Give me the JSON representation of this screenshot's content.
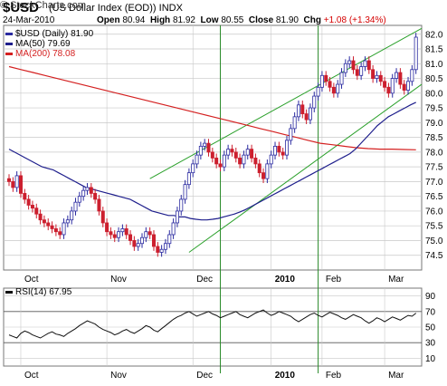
{
  "header": {
    "symbol": "$USD",
    "description": "(US Dollar Index (EOD))",
    "exchange": "INDX",
    "brand": "© StockCharts.com",
    "date": "24-Mar-2010",
    "open_label": "Open",
    "open": "80.94",
    "high_label": "High",
    "high": "81.92",
    "low_label": "Low",
    "low": "80.55",
    "close_label": "Close",
    "close": "81.90",
    "chg_label": "Chg",
    "chg": "+1.08 (+1.34%)"
  },
  "legend": {
    "price": "$USD (Daily) 81.90",
    "ma50": "MA(50) 79.69",
    "ma200": "MA(200) 78.08",
    "rsi": "RSI(14) 67.95"
  },
  "colors": {
    "up": "#2a2aa0",
    "down": "#cc1f2e",
    "ma50": "#1e1e8c",
    "ma200": "#d42020",
    "channel": "#2aa02a",
    "rsi": "#111111",
    "grid": "#c8c8c8",
    "vline": "#2a8a2a",
    "change": "#d40000"
  },
  "chart_data": [
    {
      "type": "candlestick",
      "title": "$USD (Daily)",
      "x_tick_labels": [
        "Oct",
        "Nov",
        "Dec",
        "2010",
        "Feb",
        "Mar"
      ],
      "y_tick_labels": [
        "74.5",
        "75.0",
        "75.5",
        "76.0",
        "76.5",
        "77.0",
        "77.5",
        "78.0",
        "78.5",
        "79.0",
        "79.5",
        "80.0",
        "80.5",
        "81.0",
        "81.5",
        "82.0"
      ],
      "ylim": [
        74.0,
        82.3
      ],
      "grid": true,
      "legend_position": "top-left",
      "close": [
        77.0,
        76.8,
        77.2,
        76.6,
        76.4,
        76.2,
        76.1,
        75.9,
        75.7,
        75.6,
        75.5,
        75.4,
        75.3,
        75.2,
        75.6,
        75.7,
        76.0,
        76.3,
        76.5,
        76.7,
        76.8,
        76.6,
        76.4,
        76.0,
        75.6,
        75.3,
        75.2,
        75.1,
        75.3,
        75.4,
        75.2,
        75.0,
        74.8,
        74.9,
        75.1,
        75.3,
        75.2,
        74.8,
        74.6,
        74.7,
        74.9,
        75.2,
        75.6,
        76.0,
        76.4,
        76.9,
        77.3,
        77.6,
        77.9,
        78.2,
        78.3,
        78.0,
        77.8,
        77.6,
        77.5,
        77.9,
        78.1,
        78.0,
        77.8,
        77.6,
        77.9,
        78.1,
        77.8,
        77.6,
        77.3,
        77.1,
        77.6,
        77.9,
        78.2,
        78.0,
        77.9,
        78.4,
        78.8,
        79.2,
        79.6,
        79.3,
        79.1,
        79.5,
        79.9,
        80.2,
        80.6,
        80.4,
        80.2,
        80.0,
        80.3,
        80.7,
        81.0,
        81.1,
        80.8,
        80.6,
        80.9,
        81.1,
        80.8,
        80.5,
        80.6,
        80.4,
        80.2,
        80.0,
        80.5,
        80.7,
        80.3,
        80.1,
        80.4,
        80.8,
        81.9
      ],
      "series": [
        {
          "name": "MA(50)",
          "values": [
            78.1,
            78.0,
            77.9,
            77.8,
            77.7,
            77.6,
            77.5,
            77.45,
            77.4,
            77.3,
            77.2,
            77.1,
            77.0,
            76.9,
            76.8,
            76.75,
            76.7,
            76.65,
            76.6,
            76.55,
            76.5,
            76.45,
            76.4,
            76.3,
            76.2,
            76.1,
            76.0,
            75.95,
            75.9,
            75.85,
            75.85,
            75.8,
            75.8,
            75.75,
            75.72,
            75.7,
            75.7,
            75.72,
            75.75,
            75.8,
            75.85,
            75.9,
            75.97,
            76.05,
            76.15,
            76.25,
            76.35,
            76.45,
            76.55,
            76.65,
            76.75,
            76.85,
            76.95,
            77.05,
            77.15,
            77.25,
            77.35,
            77.45,
            77.55,
            77.65,
            77.75,
            77.85,
            77.95,
            78.1,
            78.3,
            78.5,
            78.7,
            78.9,
            79.05,
            79.2,
            79.3,
            79.4,
            79.5,
            79.6,
            79.69
          ]
        },
        {
          "name": "MA(200)",
          "values": [
            80.9,
            80.8,
            80.7,
            80.6,
            80.5,
            80.4,
            80.3,
            80.2,
            80.1,
            80.0,
            79.9,
            79.8,
            79.7,
            79.6,
            79.5,
            79.4,
            79.3,
            79.2,
            79.1,
            79.0,
            78.9,
            78.8,
            78.7,
            78.6,
            78.5,
            78.4,
            78.3,
            78.25,
            78.2,
            78.15,
            78.12,
            78.1,
            78.1,
            78.09,
            78.08
          ]
        }
      ]
    },
    {
      "type": "line",
      "title": "RSI(14)",
      "y_tick_labels": [
        "10",
        "30",
        "50",
        "70",
        "90"
      ],
      "ylim": [
        0,
        100
      ],
      "grid": true,
      "values": [
        40,
        38,
        36,
        42,
        45,
        43,
        40,
        38,
        36,
        39,
        42,
        44,
        41,
        40,
        38,
        42,
        45,
        48,
        52,
        55,
        58,
        56,
        54,
        50,
        47,
        45,
        43,
        40,
        42,
        45,
        47,
        44,
        42,
        45,
        48,
        52,
        50,
        46,
        44,
        48,
        52,
        56,
        60,
        63,
        65,
        68,
        70,
        67,
        64,
        66,
        68,
        70,
        67,
        65,
        62,
        64,
        66,
        68,
        70,
        66,
        64,
        62,
        65,
        68,
        70,
        72,
        68,
        65,
        67,
        70,
        68,
        66,
        64,
        60,
        57,
        60,
        63,
        66,
        68,
        65,
        63,
        66,
        69,
        67,
        65,
        62,
        60,
        63,
        66,
        64,
        62,
        58,
        55,
        58,
        62,
        60,
        57,
        60,
        63,
        61,
        59,
        62,
        65,
        64,
        67.95
      ]
    }
  ]
}
